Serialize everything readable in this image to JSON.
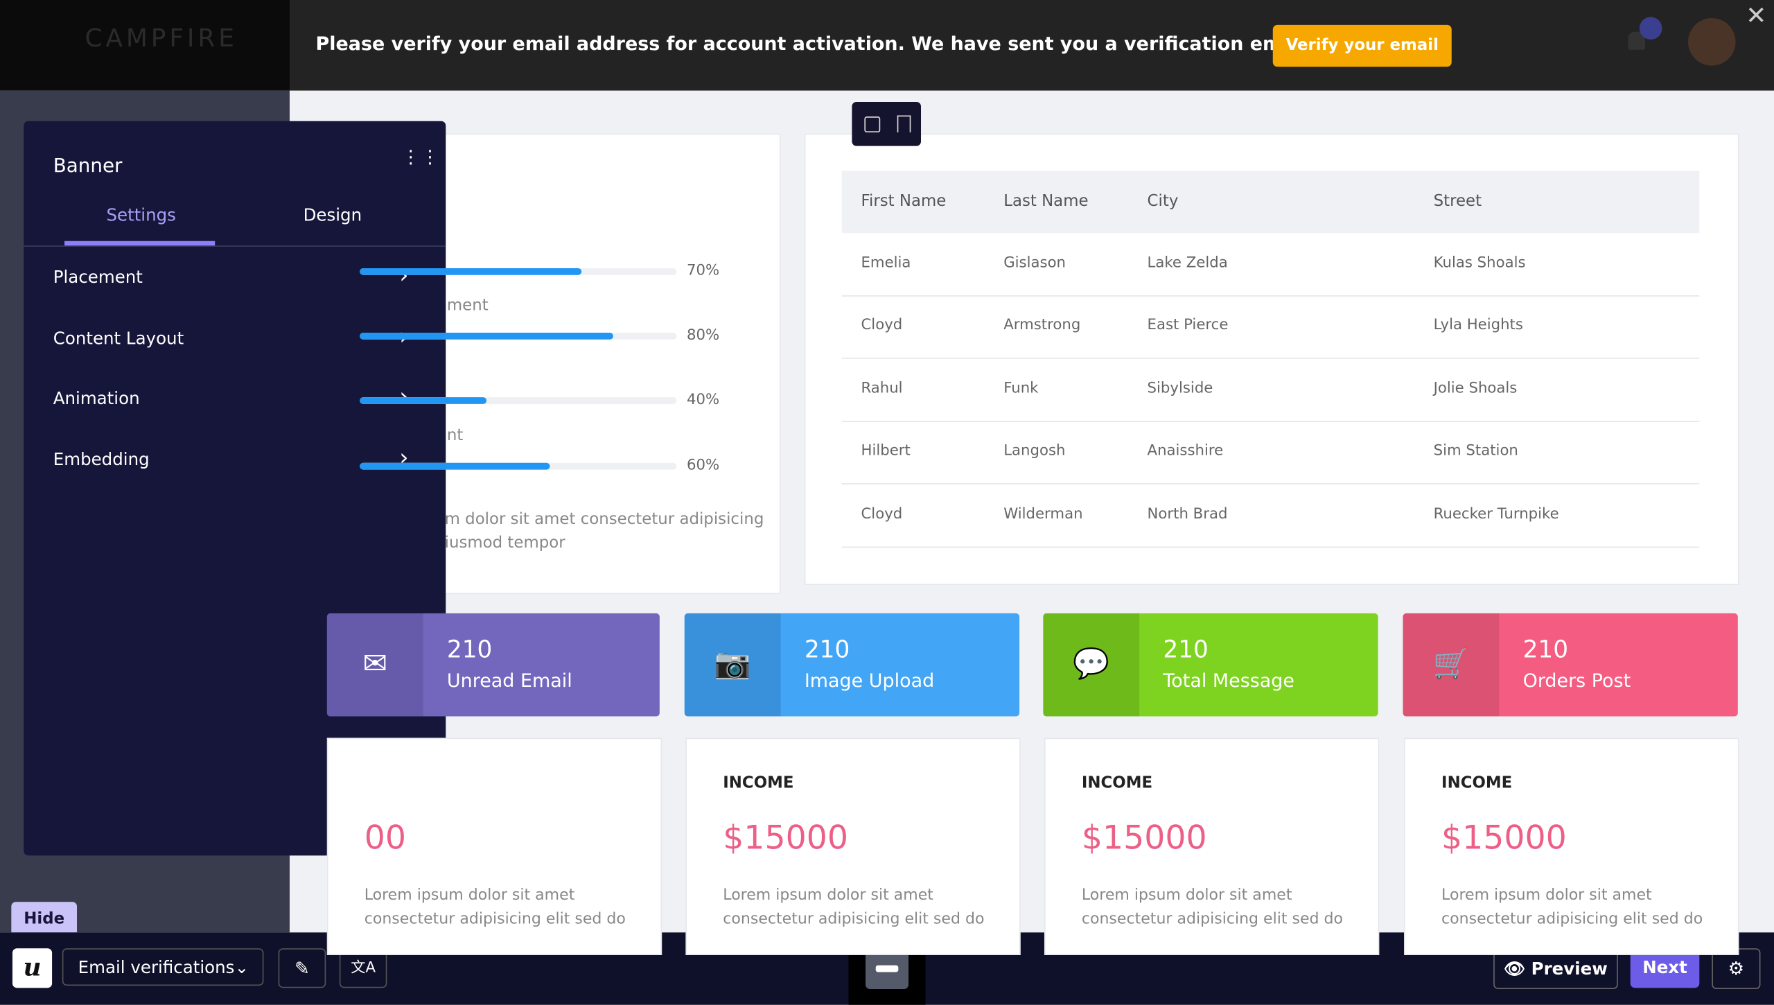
{
  "top_bar": {
    "logo": "CAMPFIRE",
    "message": "Please verify your email address for account activation. We have sent you a verification email.",
    "button": "Verify your email"
  },
  "panel": {
    "title": "Banner",
    "tabs": [
      "Settings",
      "Design"
    ],
    "items": [
      "Placement",
      "Content Layout",
      "Animation",
      "Embedding"
    ]
  },
  "progress": {
    "values": [
      70,
      80,
      40,
      60
    ],
    "value_labels": [
      "70%",
      "80%",
      "40%",
      "60%"
    ],
    "fragments": [
      "ment",
      "nt"
    ],
    "text": [
      "m dolor sit amet consectetur adipisicing",
      "iusmod tempor"
    ]
  },
  "table": {
    "headers": [
      "First Name",
      "Last Name",
      "City",
      "Street"
    ],
    "rows": [
      [
        "Emelia",
        "Gislason",
        "Lake Zelda",
        "Kulas Shoals"
      ],
      [
        "Cloyd",
        "Armstrong",
        "East Pierce",
        "Lyla Heights"
      ],
      [
        "Rahul",
        "Funk",
        "Sibylside",
        "Jolie Shoals"
      ],
      [
        "Hilbert",
        "Langosh",
        "Anaisshire",
        "Sim Station"
      ],
      [
        "Cloyd",
        "Wilderman",
        "North Brad",
        "Ruecker Turnpike"
      ]
    ]
  },
  "stats": [
    {
      "value": 210,
      "label": "Unread Email"
    },
    {
      "value": 210,
      "label": "Image Upload"
    },
    {
      "value": 210,
      "label": "Total Message"
    },
    {
      "value": 210,
      "label": "Orders Post"
    }
  ],
  "income": [
    {
      "amount": "00",
      "lines": [
        "Lorem ipsum dolor sit amet",
        "consectetur adipisicing elit sed do"
      ]
    },
    {
      "title": "INCOME",
      "amount": "$15000",
      "lines": [
        "Lorem ipsum dolor sit amet",
        "consectetur adipisicing elit sed do"
      ]
    },
    {
      "title": "INCOME",
      "amount": "$15000",
      "lines": [
        "Lorem ipsum dolor sit amet",
        "consectetur adipisicing elit sed do"
      ]
    },
    {
      "title": "INCOME",
      "amount": "$15000",
      "lines": [
        "Lorem ipsum dolor sit amet",
        "consectetur adipisicing elit sed do"
      ]
    }
  ],
  "bottom_bar": {
    "hide": "Hide",
    "dropdown": "Email verifications",
    "preview": "Preview",
    "next": "Next"
  }
}
